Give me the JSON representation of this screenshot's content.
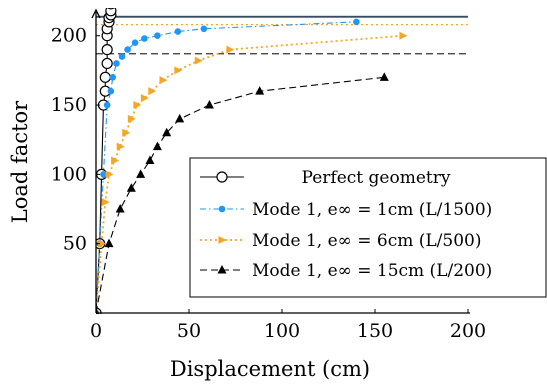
{
  "chart_data": {
    "type": "line",
    "xlabel": "Displacement (cm)",
    "ylabel": "Load factor",
    "xlim": [
      0,
      200
    ],
    "ylim": [
      0,
      220
    ],
    "x_ticks": [
      0,
      50,
      100,
      150,
      200
    ],
    "y_ticks": [
      50,
      100,
      150,
      200
    ],
    "x_tick_labels": [
      "0",
      "50",
      "100",
      "150",
      "200"
    ],
    "y_tick_labels": [
      "50",
      "100",
      "150",
      "200"
    ],
    "grid": false,
    "legend_position": "lower-right",
    "reference_lines": [
      {
        "y": 214,
        "color": "#3a78b8",
        "style": "solid"
      },
      {
        "y": 213.5,
        "color": "#333333",
        "style": "solid"
      },
      {
        "y": 208,
        "color": "#f5a623",
        "style": "dotted"
      },
      {
        "y": 187,
        "color": "#333333",
        "style": "dashed"
      }
    ],
    "series": [
      {
        "name": "Perfect geometry",
        "color": "#000000",
        "marker": "circle-open",
        "line": "solid",
        "x": [
          0,
          2,
          3,
          4,
          5,
          5,
          6,
          6,
          6,
          6,
          7,
          7,
          8,
          8,
          8
        ],
        "y": [
          0,
          50,
          100,
          150,
          160,
          170,
          180,
          190,
          200,
          205,
          210,
          213,
          215,
          218,
          223
        ]
      },
      {
        "name": "Mode 1, e∞ = 1cm (L/1500)",
        "color": "#2196f3",
        "marker": "circle",
        "line": "dashdot",
        "x": [
          0,
          2,
          4,
          6,
          8,
          9,
          11,
          14,
          17,
          21,
          26,
          33,
          44,
          58,
          140
        ],
        "y": [
          0,
          50,
          100,
          150,
          160,
          170,
          180,
          185,
          190,
          195,
          198,
          200,
          203,
          205,
          210
        ]
      },
      {
        "name": "Mode 1, e∞ = 6cm (L/500)",
        "color": "#f5a623",
        "marker": "triangle-right",
        "line": "dotted",
        "x": [
          0,
          3,
          5,
          7,
          10,
          13,
          16,
          19,
          22,
          26,
          30,
          36,
          44,
          55,
          72,
          165
        ],
        "y": [
          0,
          50,
          80,
          100,
          110,
          120,
          130,
          140,
          150,
          155,
          160,
          168,
          175,
          182,
          190,
          200
        ]
      },
      {
        "name": "Mode 1, e∞ = 15cm (L/200)",
        "color": "#000000",
        "marker": "triangle",
        "line": "dashed",
        "x": [
          0,
          7,
          13,
          19,
          24,
          29,
          33,
          38,
          45,
          61,
          88,
          155
        ],
        "y": [
          0,
          50,
          75,
          90,
          100,
          110,
          120,
          130,
          140,
          150,
          160,
          170
        ]
      }
    ]
  }
}
